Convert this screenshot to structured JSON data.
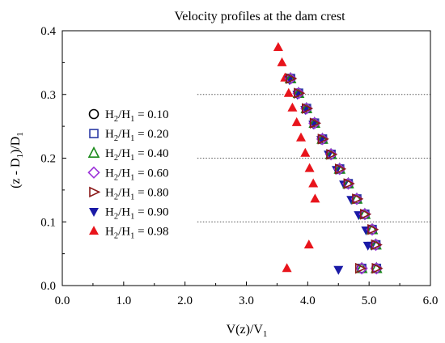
{
  "chart_data": {
    "type": "scatter",
    "title": "Velocity profiles at the dam crest",
    "xlabel": {
      "main": "V(z)/V",
      "sub": "1"
    },
    "ylabel": {
      "pre": "(z - D",
      "sub": "1",
      "post": ")/D",
      "sub2": "1"
    },
    "xlim": [
      0.0,
      6.0
    ],
    "ylim": [
      0.0,
      0.4
    ],
    "xticks": [
      "0.0",
      "1.0",
      "2.0",
      "3.0",
      "4.0",
      "5.0",
      "6.0"
    ],
    "yticks": [
      "0.0",
      "0.1",
      "0.2",
      "0.3",
      "0.4"
    ],
    "gridlines_y": [
      0.1,
      0.2,
      0.3
    ],
    "legend_position": "left",
    "series": [
      {
        "name": {
          "a": "H",
          "s1": "2",
          "b": "/H",
          "s2": "1",
          "c": " = 0.10"
        },
        "marker": "circle-open",
        "color": "#000000",
        "x": [
          3.72,
          3.85,
          3.98,
          4.11,
          4.24,
          4.38,
          4.52,
          4.66,
          4.8,
          4.93,
          5.05,
          5.11,
          5.12,
          4.88
        ],
        "y": [
          0.325,
          0.302,
          0.278,
          0.255,
          0.23,
          0.206,
          0.183,
          0.16,
          0.136,
          0.112,
          0.088,
          0.064,
          0.027,
          0.027
        ]
      },
      {
        "name": {
          "a": "H",
          "s1": "2",
          "b": "/H",
          "s2": "1",
          "c": " = 0.20"
        },
        "marker": "square-open",
        "color": "#2e3ca6",
        "x": [
          3.72,
          3.85,
          3.98,
          4.11,
          4.24,
          4.38,
          4.52,
          4.66,
          4.8,
          4.93,
          5.05,
          5.11,
          5.12,
          4.88
        ],
        "y": [
          0.325,
          0.302,
          0.278,
          0.255,
          0.23,
          0.206,
          0.183,
          0.16,
          0.136,
          0.112,
          0.088,
          0.064,
          0.027,
          0.027
        ]
      },
      {
        "name": {
          "a": "H",
          "s1": "2",
          "b": "/H",
          "s2": "1",
          "c": " = 0.40"
        },
        "marker": "triangle-open",
        "color": "#1a8a1a",
        "x": [
          3.72,
          3.85,
          3.98,
          4.11,
          4.24,
          4.38,
          4.52,
          4.66,
          4.8,
          4.93,
          5.05,
          5.11,
          5.12,
          4.88
        ],
        "y": [
          0.325,
          0.302,
          0.278,
          0.255,
          0.23,
          0.206,
          0.183,
          0.16,
          0.136,
          0.112,
          0.088,
          0.064,
          0.027,
          0.027
        ]
      },
      {
        "name": {
          "a": "H",
          "s1": "2",
          "b": "/H",
          "s2": "1",
          "c": " = 0.60"
        },
        "marker": "diamond-open",
        "color": "#9b30d9",
        "x": [
          3.72,
          3.85,
          3.98,
          4.11,
          4.24,
          4.38,
          4.52,
          4.66,
          4.8,
          4.93,
          5.05,
          5.11,
          5.12,
          4.88
        ],
        "y": [
          0.325,
          0.302,
          0.278,
          0.255,
          0.23,
          0.206,
          0.183,
          0.16,
          0.136,
          0.112,
          0.088,
          0.064,
          0.027,
          0.027
        ]
      },
      {
        "name": {
          "a": "H",
          "s1": "2",
          "b": "/H",
          "s2": "1",
          "c": " = 0.80"
        },
        "marker": "triangle-right-open",
        "color": "#8b1a1a",
        "x": [
          3.72,
          3.85,
          3.98,
          4.11,
          4.24,
          4.38,
          4.52,
          4.66,
          4.8,
          4.93,
          5.05,
          5.11,
          5.12,
          4.85
        ],
        "y": [
          0.325,
          0.302,
          0.278,
          0.255,
          0.23,
          0.206,
          0.183,
          0.16,
          0.136,
          0.112,
          0.088,
          0.064,
          0.027,
          0.027
        ]
      },
      {
        "name": {
          "a": "H",
          "s1": "2",
          "b": "/H",
          "s2": "1",
          "c": " = 0.90"
        },
        "marker": "triangle-down-filled",
        "color": "#1a1aa6",
        "x": [
          3.7,
          3.83,
          3.96,
          4.09,
          4.22,
          4.34,
          4.47,
          4.59,
          4.71,
          4.83,
          4.95,
          5.04,
          4.98,
          4.5
        ],
        "y": [
          0.323,
          0.3,
          0.276,
          0.253,
          0.229,
          0.206,
          0.182,
          0.159,
          0.135,
          0.111,
          0.087,
          0.063,
          0.063,
          0.025
        ]
      },
      {
        "name": {
          "a": "H",
          "s1": "2",
          "b": "/H",
          "s2": "1",
          "c": " = 0.98"
        },
        "marker": "triangle-up-filled",
        "color": "#e8141b",
        "x": [
          3.52,
          3.58,
          3.63,
          3.69,
          3.75,
          3.82,
          3.89,
          3.96,
          4.03,
          4.09,
          4.12,
          4.02,
          3.66
        ],
        "y": [
          0.374,
          0.35,
          0.326,
          0.302,
          0.279,
          0.256,
          0.232,
          0.208,
          0.184,
          0.16,
          0.136,
          0.064,
          0.027
        ]
      }
    ]
  }
}
